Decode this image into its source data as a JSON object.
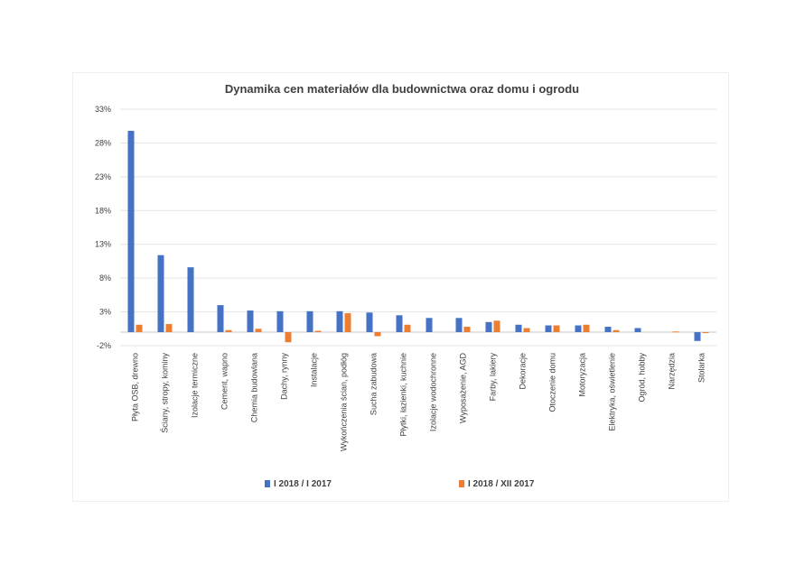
{
  "chart_data": {
    "type": "bar",
    "title": "Dynamika cen materiałów dla budownictwa oraz domu i ogrodu",
    "categories": [
      "Płyta OSB, drewno",
      "Ściany, stropy, kominy",
      "Izolacje termiczne",
      "Cement, wapno",
      "Chemia budowlana",
      "Dachy, rynny",
      "Instalacje",
      "Wykończenia ścian, podłóg",
      "Sucha zabudowa",
      "Płytki, łazienki, kuchnie",
      "Izolacje wodochronne",
      "Wyposażenie, AGD",
      "Farby, lakiery",
      "Dekoracje",
      "Otoczenie domu",
      "Motoryzacja",
      "Elektryka, oświetlenie",
      "Ogród, hobby",
      "Narzędzia",
      "Stolarka"
    ],
    "series": [
      {
        "name": "I 2018 / I 2017",
        "color": "#4472C4",
        "values": [
          29.8,
          11.4,
          9.6,
          4.0,
          3.2,
          3.1,
          3.1,
          3.1,
          2.9,
          2.5,
          2.1,
          2.1,
          1.5,
          1.1,
          1.0,
          1.0,
          0.8,
          0.6,
          0.0,
          -1.3
        ]
      },
      {
        "name": "I 2018 / XII 2017",
        "color": "#ED7D31",
        "values": [
          1.1,
          1.2,
          0.0,
          0.3,
          0.5,
          -1.5,
          0.2,
          2.8,
          -0.6,
          1.1,
          0.0,
          0.8,
          1.7,
          0.6,
          1.0,
          1.1,
          0.3,
          0.0,
          0.1,
          -0.1
        ]
      }
    ],
    "yticks": [
      "33%",
      "28%",
      "23%",
      "18%",
      "13%",
      "8%",
      "3%",
      "-2%"
    ],
    "ylim": [
      -2,
      33
    ],
    "grid": true,
    "legend_position": "bottom"
  }
}
